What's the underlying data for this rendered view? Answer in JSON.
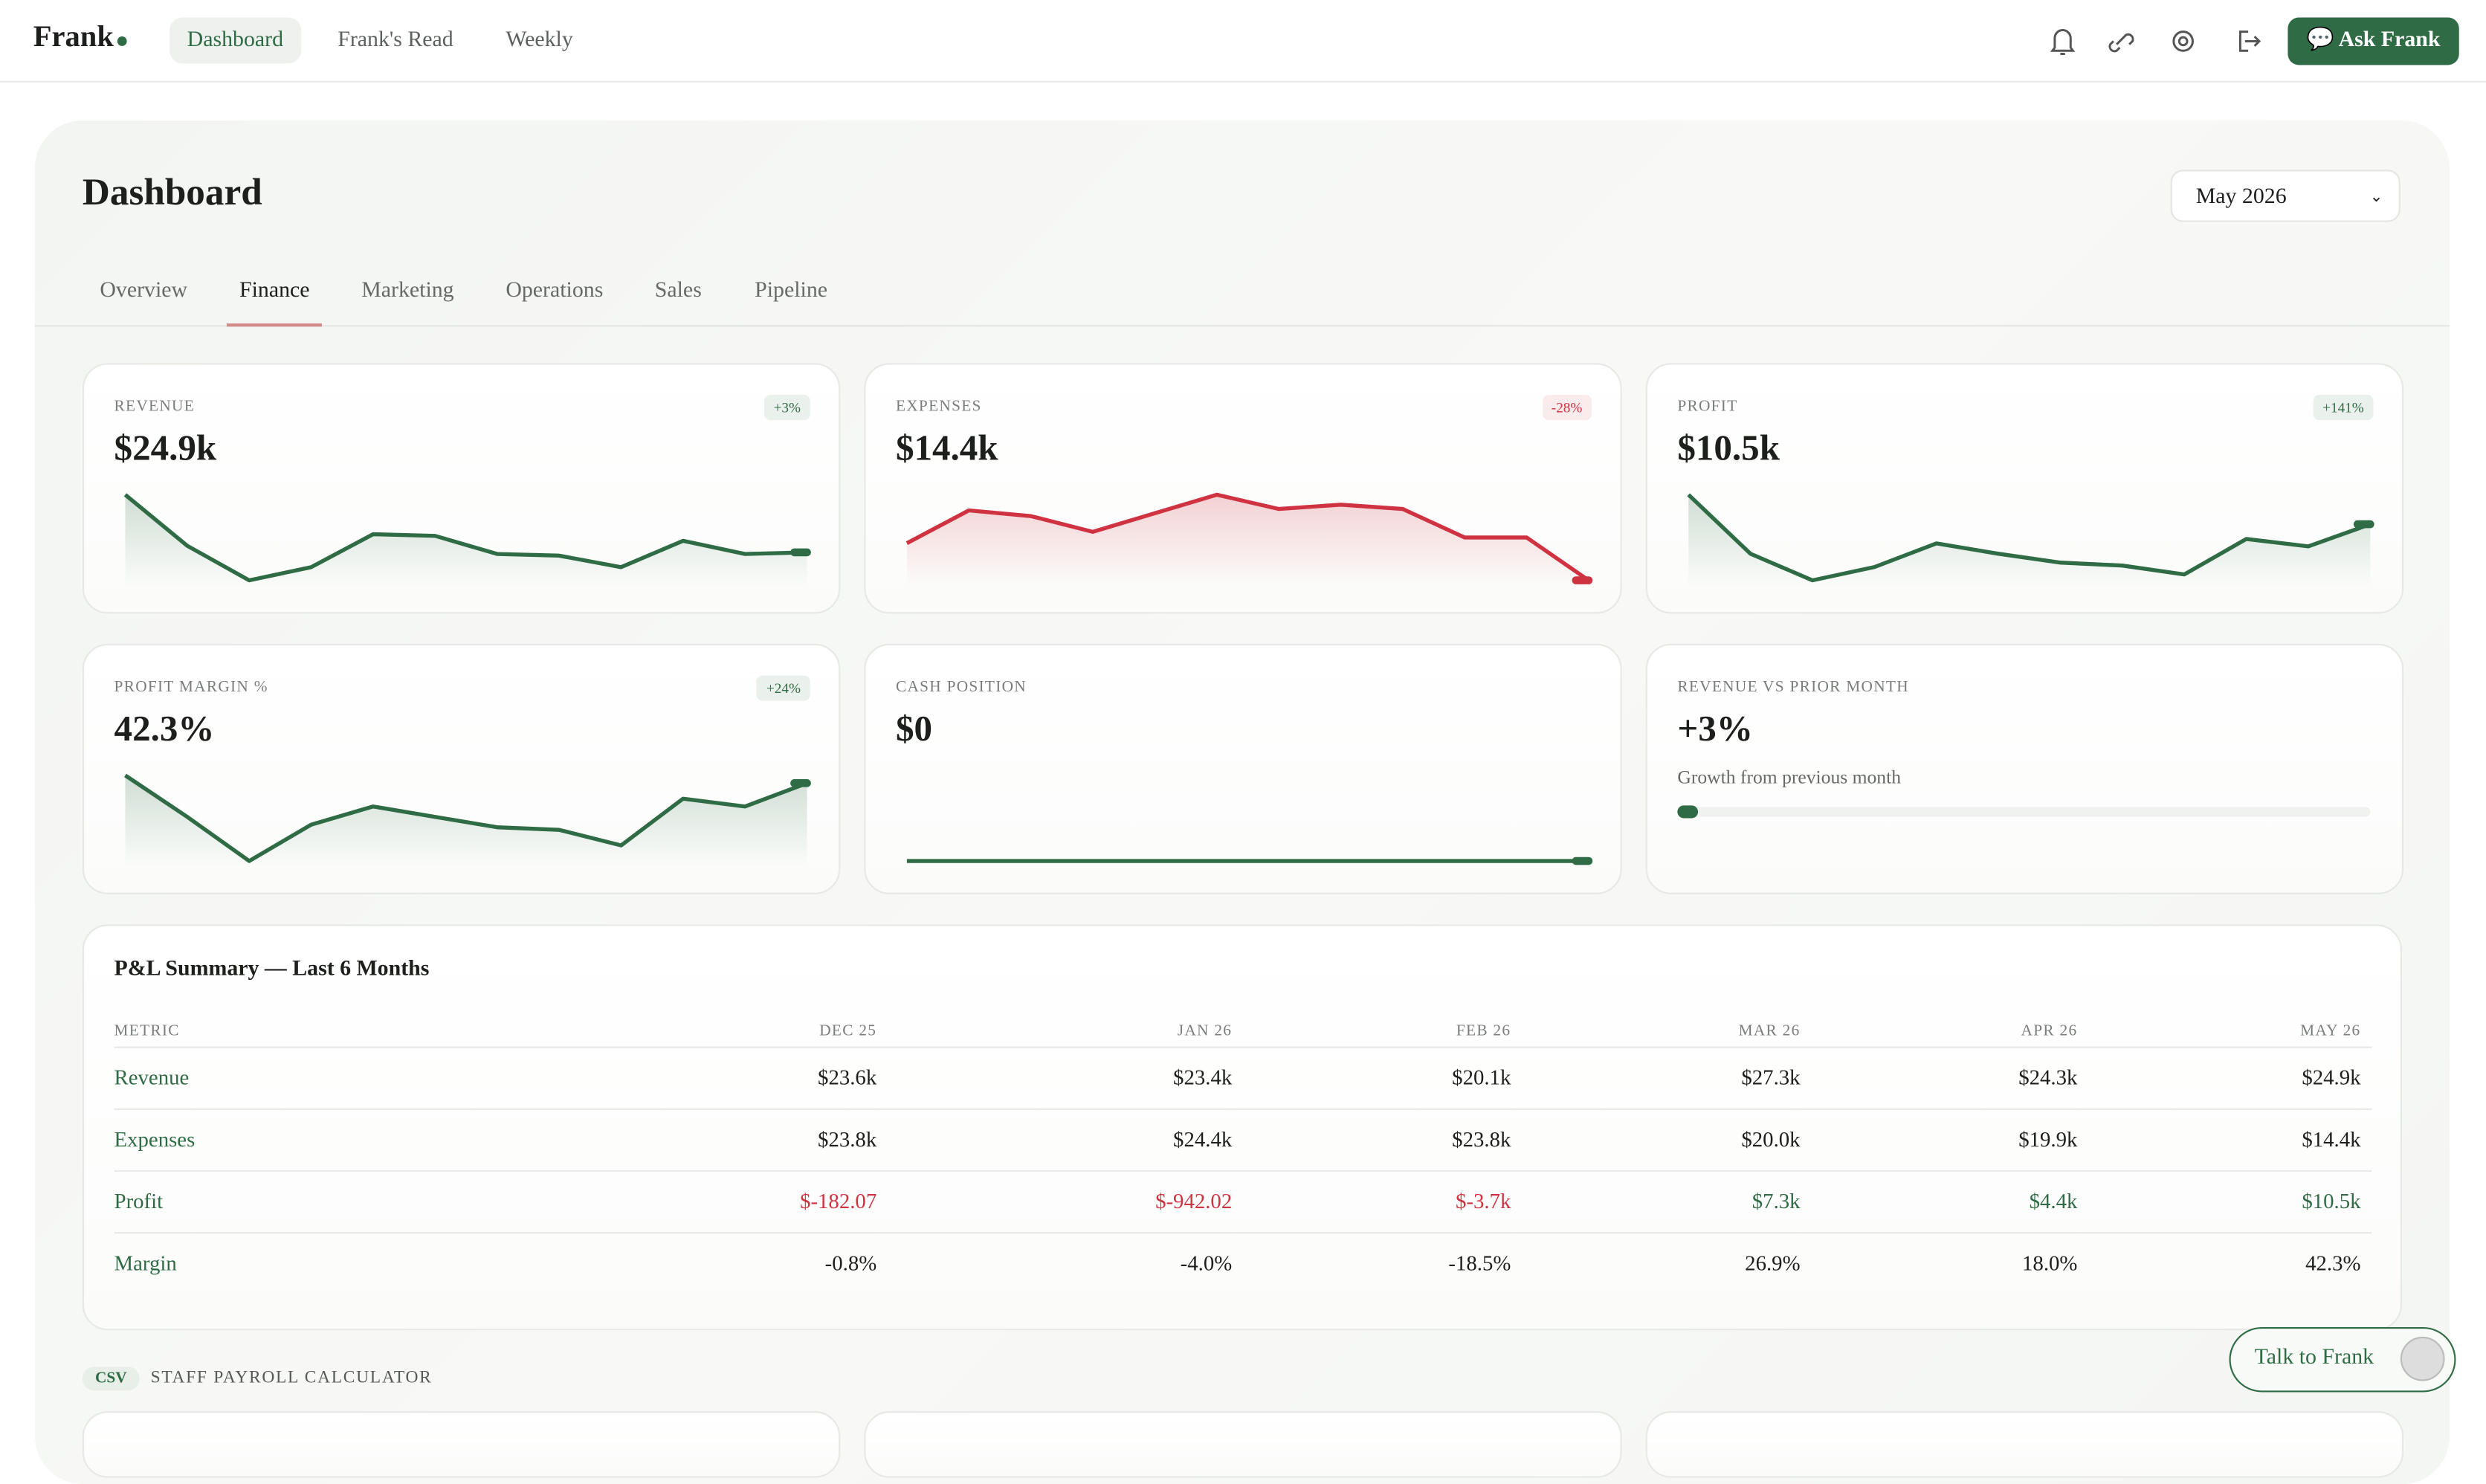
{
  "nav": {
    "brand": "Frank",
    "links": [
      "Dashboard",
      "Frank's Read",
      "Weekly"
    ],
    "cta": "Ask Frank"
  },
  "header": {
    "title": "Dashboard",
    "period": "May 2026"
  },
  "tabs": [
    "Overview",
    "Finance",
    "Marketing",
    "Operations",
    "Sales",
    "Pipeline"
  ],
  "cards": [
    {
      "label": "REVENUE",
      "value": "$24.9k",
      "badge": "+3%",
      "color": "#2f6b45",
      "values": [
        28.4,
        25.3,
        23.2,
        24.0,
        26.0,
        25.9,
        24.8,
        24.7,
        24.0,
        25.6,
        24.8,
        24.9
      ]
    },
    {
      "label": "EXPENSES",
      "value": "$14.4k",
      "badge": "-28%",
      "color": "#cf3341",
      "values": [
        19.8,
        22.1,
        21.7,
        20.6,
        21.9,
        23.2,
        22.2,
        22.5,
        22.2,
        20.2,
        20.2,
        17.2
      ]
    },
    {
      "label": "PROFIT",
      "value": "$10.5k",
      "badge": "+141%",
      "color": "#2f6b45",
      "values": [
        12.0,
        8.0,
        6.2,
        7.1,
        8.7,
        8.0,
        7.4,
        7.2,
        6.6,
        9.0,
        8.5,
        10.0
      ]
    },
    {
      "label": "PROFIT MARGIN %",
      "value": "42.3%",
      "badge": "+24%",
      "color": "#2f6b45",
      "values": [
        48,
        32,
        15,
        29,
        36,
        32,
        28,
        27,
        21,
        39,
        36,
        45
      ]
    },
    {
      "label": "CASH POSITION",
      "value": "$0",
      "color": "#2f6b45",
      "values": [
        0,
        0,
        0,
        0,
        0,
        0,
        0,
        0,
        0,
        0,
        0,
        0
      ]
    },
    {
      "label": "REVENUE VS PRIOR MONTH",
      "value": "+3%",
      "note": "Growth from previous month",
      "color": "#2f6b45",
      "progress": 3
    }
  ],
  "table": {
    "title": "P&L Summary — Last 6 Months",
    "header": [
      "METRIC",
      "DEC 25",
      "JAN 26",
      "FEB 26",
      "MAR 26",
      "APR 26",
      "MAY 26"
    ],
    "rows": [
      [
        "Revenue",
        "$23.6k",
        "$23.4k",
        "$20.1k",
        "$27.3k",
        "$24.3k",
        "$24.9k"
      ],
      [
        "Expenses",
        "$23.8k",
        "$24.4k",
        "$23.8k",
        "$20.0k",
        "$19.9k",
        "$14.4k"
      ],
      [
        "Profit",
        "$-182.07",
        "$-942.02",
        "$-3.7k",
        "$7.3k",
        "$4.4k",
        "$10.5k"
      ],
      [
        "Margin",
        "-0.8%",
        "-4.0%",
        "-18.5%",
        "26.9%",
        "18.0%",
        "42.3%"
      ]
    ]
  },
  "section": {
    "badge": "CSV",
    "title": "STAFF PAYROLL CALCULATOR"
  },
  "chat": {
    "label": "Talk to Frank"
  }
}
